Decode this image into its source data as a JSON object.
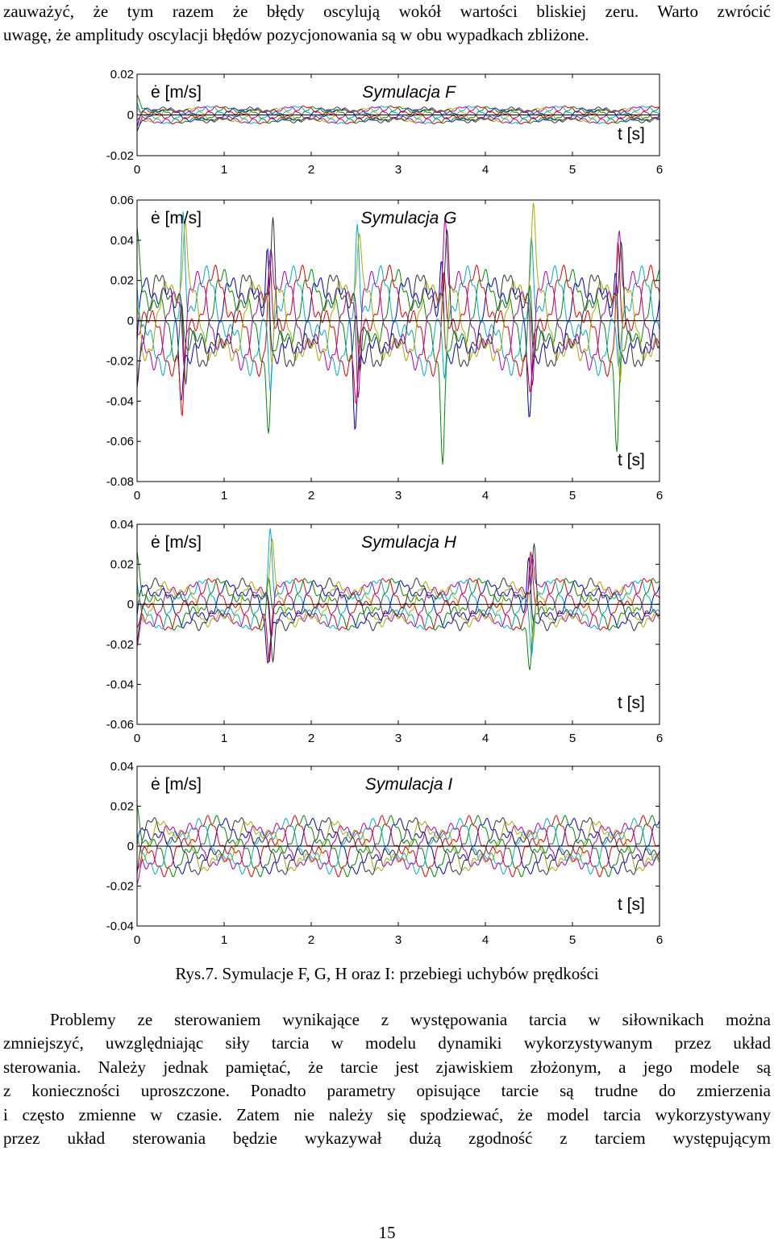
{
  "intro": {
    "lines": [
      "zauważyć, że tym razem że błędy oscylują wokół wartości bliskiej zeru. Warto zwrócić",
      "uwagę, że amplitudy oscylacji błędów pozycjonowania są w obu wypadkach zbliżone."
    ]
  },
  "chart_data": [
    {
      "type": "line",
      "title": "Symulacja F",
      "ylabel": "ė [m/s]",
      "xlabel": "t [s]",
      "ylim": [
        -0.02,
        0.02
      ],
      "xlim": [
        0,
        6
      ],
      "yticks": [
        "0.02",
        "0",
        "-0.02"
      ],
      "xticks": [
        "0",
        "1",
        "2",
        "3",
        "4",
        "5",
        "6"
      ],
      "grid": false,
      "series_colors": [
        "#0000cc",
        "#008800",
        "#dd0000",
        "#00aacc",
        "#aa00aa",
        "#aaaa00",
        "#333333"
      ],
      "amplitude": 0.003,
      "spike_times": []
    },
    {
      "type": "line",
      "title": "Symulacja G",
      "ylabel": "ė [m/s]",
      "xlabel": "t [s]",
      "ylim": [
        -0.08,
        0.06
      ],
      "xlim": [
        0,
        6
      ],
      "yticks": [
        "0.06",
        "0.04",
        "0.02",
        "0",
        "-0.02",
        "-0.04",
        "-0.06",
        "-0.08"
      ],
      "xticks": [
        "0",
        "1",
        "2",
        "3",
        "4",
        "5",
        "6"
      ],
      "grid": false,
      "series_colors": [
        "#0000cc",
        "#008800",
        "#dd0000",
        "#00aacc",
        "#aa00aa",
        "#aaaa00",
        "#333333"
      ],
      "amplitude": 0.018,
      "spike_times": [
        0.5,
        1.5,
        2.5,
        3.5,
        4.5,
        5.5
      ]
    },
    {
      "type": "line",
      "title": "Symulacja H",
      "ylabel": "ė [m/s]",
      "xlabel": "t [s]",
      "ylim": [
        -0.06,
        0.04
      ],
      "xlim": [
        0,
        6
      ],
      "yticks": [
        "0.04",
        "0.02",
        "0",
        "-0.02",
        "-0.04",
        "-0.06"
      ],
      "xticks": [
        "0",
        "1",
        "2",
        "3",
        "4",
        "5",
        "6"
      ],
      "grid": false,
      "series_colors": [
        "#0000cc",
        "#008800",
        "#dd0000",
        "#00aacc",
        "#aa00aa",
        "#aaaa00",
        "#333333"
      ],
      "amplitude": 0.009,
      "spike_times": [
        1.5,
        4.5
      ]
    },
    {
      "type": "line",
      "title": "Symulacja I",
      "ylabel": "ė [m/s]",
      "xlabel": "t [s]",
      "ylim": [
        -0.04,
        0.04
      ],
      "xlim": [
        0,
        6
      ],
      "yticks": [
        "0.04",
        "0.02",
        "0",
        "-0.02",
        "-0.04"
      ],
      "xticks": [
        "0",
        "1",
        "2",
        "3",
        "4",
        "5",
        "6"
      ],
      "grid": false,
      "series_colors": [
        "#0000cc",
        "#008800",
        "#dd0000",
        "#00aacc",
        "#aa00aa",
        "#aaaa00",
        "#333333"
      ],
      "amplitude": 0.01,
      "spike_times": []
    }
  ],
  "caption": "Rys.7. Symulacje F, G, H oraz I: przebiegi uchybów prędkości",
  "body": {
    "lines": [
      "Problemy ze sterowaniem wynikające z występowania tarcia w siłownikach można",
      "zmniejszyć, uwzględniając siły tarcia w modelu dynamiki wykorzystywanym przez układ",
      "sterowania. Należy jednak pamiętać, że tarcie jest zjawiskiem złożonym, a jego modele są",
      "z konieczności uproszczone. Ponadto parametry opisujące tarcie są trudne do zmierzenia",
      "i często zmienne w czasie. Zatem nie należy się spodziewać, że model tarcia wykorzystywany",
      "przez układ sterowania będzie wykazywał dużą zgodność z tarciem występującym"
    ]
  },
  "page_number": "15"
}
